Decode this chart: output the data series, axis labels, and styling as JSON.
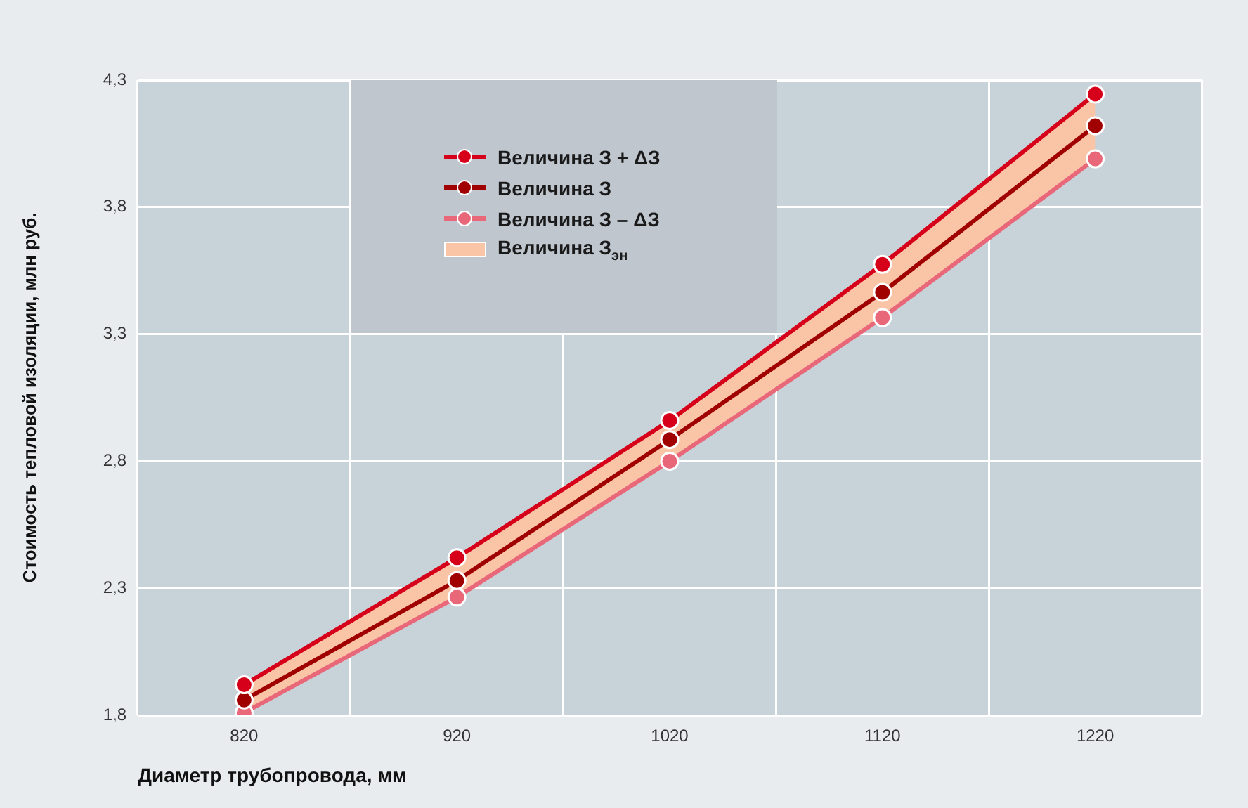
{
  "chart_data": {
    "type": "line",
    "xlabel": "Диаметр трубопровода, мм",
    "ylabel": "Стоимость тепловой изоляции, млн руб.",
    "categories": [
      "820",
      "920",
      "1020",
      "1120",
      "1220"
    ],
    "series": [
      {
        "name": "Величина З + ΔЗ",
        "color": "#d7001a",
        "values": [
          1.92,
          2.42,
          2.96,
          3.575,
          4.245
        ]
      },
      {
        "name": "Величина З",
        "color": "#a00000",
        "values": [
          1.86,
          2.33,
          2.885,
          3.465,
          4.12
        ]
      },
      {
        "name": "Величина З – ΔЗ",
        "color": "#e8687a",
        "values": [
          1.81,
          2.265,
          2.8,
          3.365,
          3.99
        ]
      },
      {
        "name": "Величина З$_{эн}$",
        "type": "area",
        "color": "#f9c5a6",
        "values": [
          null,
          null,
          null,
          null,
          null
        ],
        "lower": [
          1.81,
          2.265,
          2.8,
          3.365,
          3.99
        ],
        "upper": [
          1.92,
          2.42,
          2.96,
          3.575,
          4.245
        ]
      }
    ],
    "ylim": [
      1.8,
      4.3
    ],
    "yticks": [
      {
        "value": 1.8,
        "label": "1,8"
      },
      {
        "value": 2.3,
        "label": "2,3"
      },
      {
        "value": 2.8,
        "label": "2,8"
      },
      {
        "value": 3.3,
        "label": "3,3"
      },
      {
        "value": 3.8,
        "label": "3,8"
      },
      {
        "value": 4.3,
        "label": "4,3"
      }
    ],
    "grid": true,
    "legend": "top left",
    "marker": "circle",
    "line_style": "solid"
  }
}
